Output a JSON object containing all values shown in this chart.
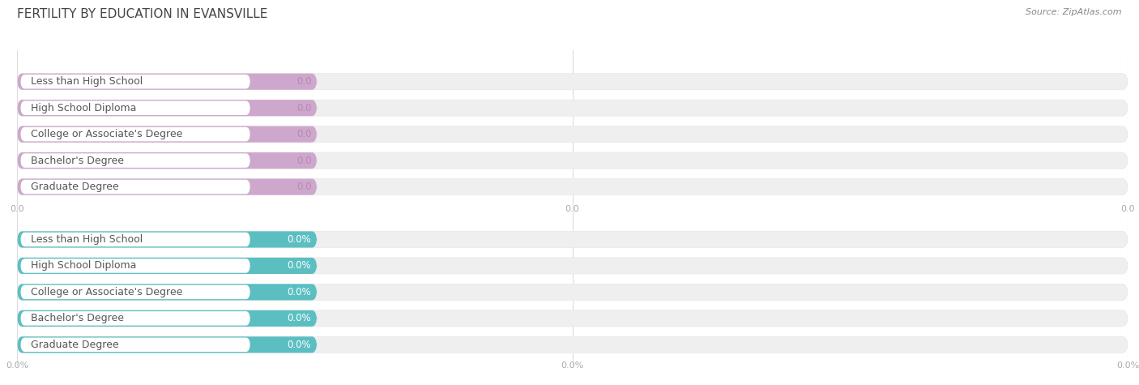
{
  "title": "FERTILITY BY EDUCATION IN EVANSVILLE",
  "source": "Source: ZipAtlas.com",
  "categories": [
    "Less than High School",
    "High School Diploma",
    "College or Associate's Degree",
    "Bachelor's Degree",
    "Graduate Degree"
  ],
  "values_top": [
    0.0,
    0.0,
    0.0,
    0.0,
    0.0
  ],
  "values_bottom": [
    0.0,
    0.0,
    0.0,
    0.0,
    0.0
  ],
  "bar_color_top": "#cda8cc",
  "bar_color_bottom": "#5bbfc2",
  "bg_bar_color": "#efefef",
  "label_bg_color": "#ffffff",
  "title_color": "#444444",
  "label_color": "#555555",
  "value_color_top": "#b888b0",
  "value_color_bottom": "#ffffff",
  "tick_color": "#aaaaaa",
  "grid_color": "#dddddd",
  "background_color": "#ffffff",
  "bar_height": 0.62,
  "title_fontsize": 11,
  "label_fontsize": 9,
  "value_fontsize": 8.5,
  "tick_fontsize": 8,
  "source_fontsize": 8
}
